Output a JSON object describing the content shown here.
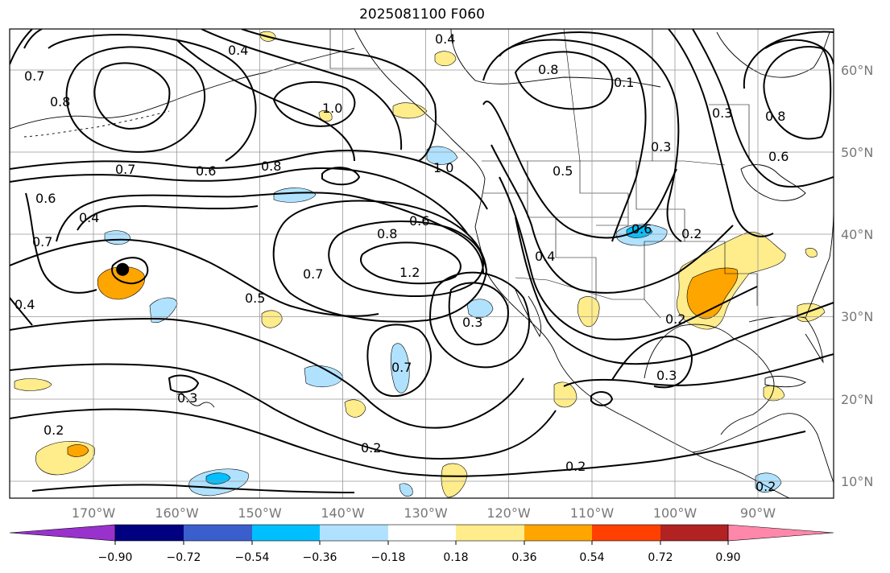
{
  "title": "2025081100 F060",
  "map": {
    "lon_range": [
      -180,
      -80
    ],
    "lat_range": [
      8,
      65
    ],
    "lon_ticks": [
      "170°W",
      "160°W",
      "150°W",
      "140°W",
      "130°W",
      "120°W",
      "110°W",
      "100°W",
      "90°W"
    ],
    "lat_ticks": [
      "10°N",
      "20°N",
      "30°N",
      "40°N",
      "50°N",
      "60°N"
    ],
    "grid": true,
    "tick_label_color": "#777777",
    "marker": {
      "lon": -166.3,
      "lat": 35.8
    }
  },
  "contour_labels": [
    "0.4",
    "0.7",
    "0.8",
    "1.0",
    "0.6",
    "0.7",
    "0.8",
    "0.6",
    "0.4",
    "0.7",
    "0.5",
    "0.4",
    "0.8",
    "1.2",
    "0.7",
    "1.0",
    "0.6",
    "0.8",
    "0.3",
    "0.7",
    "0.3",
    "0.2",
    "0.2",
    "0.2",
    "0.3",
    "0.6",
    "0.2",
    "0.2",
    "0.5",
    "0.3",
    "0.4",
    "0.6",
    "0.8",
    "0.1",
    "0.4",
    "0.3",
    "0.2"
  ],
  "colorbar": {
    "levels": [
      "−0.90",
      "−0.72",
      "−0.54",
      "−0.36",
      "−0.18",
      "0.18",
      "0.36",
      "0.54",
      "0.72",
      "0.90"
    ],
    "colors": [
      "#9932cc",
      "#000080",
      "#3a5fcd",
      "#00bfff",
      "#b0e2ff",
      "#ffffff",
      "#ffec8b",
      "#ffa500",
      "#ff4000",
      "#b22222",
      "#ff88aa"
    ]
  }
}
